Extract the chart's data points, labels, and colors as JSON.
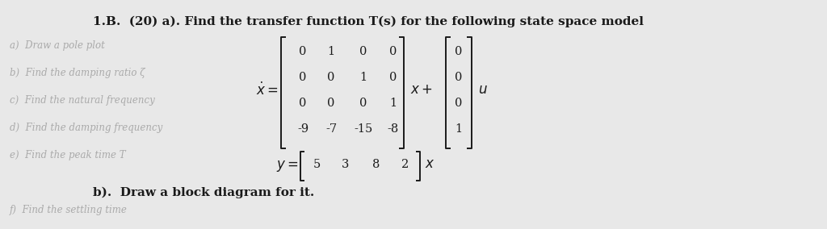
{
  "title": "1.B.  (20) a). Find the transfer function T(s) for the following state space model",
  "bg_color": "#e8e8e8",
  "text_color": "#1a1a1a",
  "faded_color": "#aaaaaa",
  "matrix_A": [
    [
      0,
      1,
      0,
      0
    ],
    [
      0,
      0,
      1,
      0
    ],
    [
      0,
      0,
      0,
      1
    ],
    [
      -9,
      -7,
      -15,
      -8
    ]
  ],
  "matrix_B": [
    0,
    0,
    0,
    1
  ],
  "matrix_C": [
    5,
    3,
    8,
    2
  ],
  "part_b": "b).  Draw a block diagram for it.",
  "faded_lines": [
    "a)  Draw a pole plot",
    "b)  Find the damping ratio ζ",
    "c)  Find the natural frequency",
    "d)  Find the damping frequency",
    "e)  Find the peak time T",
    "f)  Find the settling time"
  ]
}
